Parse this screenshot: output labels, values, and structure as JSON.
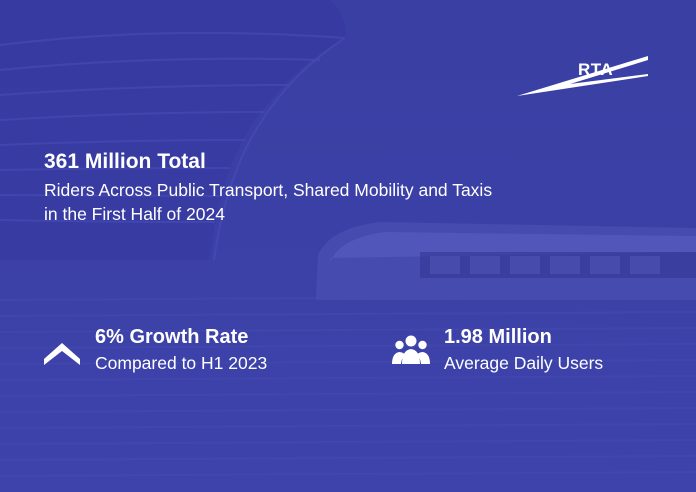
{
  "brand": {
    "logo_text": "RTA"
  },
  "headline": {
    "title": "361 Million Total",
    "line1": "Riders Across Public Transport, Shared Mobility and Taxis",
    "line2": "in the First Half of 2024"
  },
  "stats": [
    {
      "icon": "up-chevron-icon",
      "title": "6% Growth Rate",
      "subtitle": "Compared to H1 2023"
    },
    {
      "icon": "users-group-icon",
      "title": "1.98 Million",
      "subtitle": "Average Daily Users"
    }
  ],
  "colors": {
    "background": "#3b40a6",
    "text": "#ffffff"
  }
}
